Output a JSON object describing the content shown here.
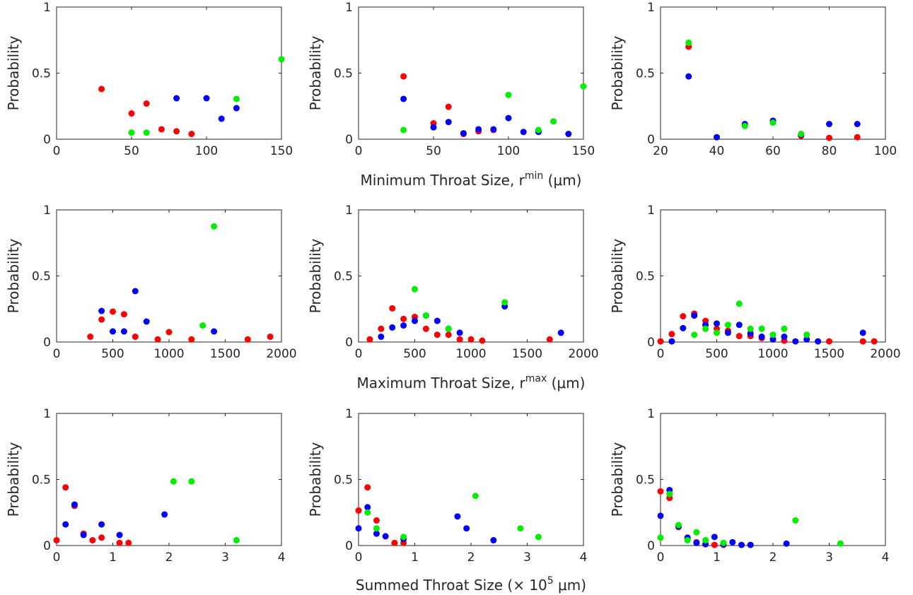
{
  "colors": {
    "red": "#ff0000",
    "blue": "#0000ff",
    "green": "#00ee00",
    "axis": "#262626"
  },
  "row_xlabels": [
    {
      "text": "Minimum Throat Size, r",
      "sup": "min",
      "unit": "(μm)"
    },
    {
      "text": "Maximum Throat Size, r",
      "sup": "max",
      "unit": "(μm)"
    },
    {
      "text": "Summed Throat Size (× 10",
      "sup": "5",
      "unit": "μm)"
    }
  ],
  "chart_data": [
    {
      "type": "scatter",
      "row": 0,
      "col": 0,
      "ylabel": "Probability",
      "xlim": [
        0,
        150
      ],
      "ylim": [
        0,
        1
      ],
      "xticks": [
        "0",
        "50",
        "100",
        "150"
      ],
      "yticks": [
        "0",
        "0.5",
        "1"
      ],
      "series": [
        {
          "color": "red",
          "points": [
            [
              30,
              0.38
            ],
            [
              50,
              0.195
            ],
            [
              60,
              0.27
            ],
            [
              70,
              0.075
            ],
            [
              80,
              0.06
            ],
            [
              90,
              0.04
            ]
          ]
        },
        {
          "color": "blue",
          "points": [
            [
              80,
              0.31
            ],
            [
              100,
              0.31
            ],
            [
              110,
              0.155
            ],
            [
              120,
              0.235
            ]
          ]
        },
        {
          "color": "green",
          "points": [
            [
              50,
              0.05
            ],
            [
              60,
              0.05
            ],
            [
              120,
              0.305
            ],
            [
              150,
              0.605
            ]
          ]
        }
      ]
    },
    {
      "type": "scatter",
      "row": 0,
      "col": 1,
      "ylabel": "Probability",
      "xlim": [
        0,
        150
      ],
      "ylim": [
        0,
        1
      ],
      "xticks": [
        "0",
        "50",
        "100",
        "150"
      ],
      "yticks": [
        "0",
        "0.5",
        "1"
      ],
      "series": [
        {
          "color": "red",
          "points": [
            [
              30,
              0.475
            ],
            [
              50,
              0.12
            ],
            [
              60,
              0.245
            ],
            [
              70,
              0.04
            ],
            [
              80,
              0.06
            ],
            [
              90,
              0.07
            ],
            [
              120,
              0.06
            ]
          ]
        },
        {
          "color": "blue",
          "points": [
            [
              30,
              0.305
            ],
            [
              50,
              0.09
            ],
            [
              60,
              0.13
            ],
            [
              70,
              0.045
            ],
            [
              80,
              0.075
            ],
            [
              90,
              0.075
            ],
            [
              100,
              0.16
            ],
            [
              110,
              0.055
            ],
            [
              120,
              0.055
            ],
            [
              140,
              0.04
            ]
          ]
        },
        {
          "color": "green",
          "points": [
            [
              30,
              0.07
            ],
            [
              100,
              0.335
            ],
            [
              120,
              0.07
            ],
            [
              130,
              0.135
            ],
            [
              150,
              0.4
            ]
          ]
        }
      ]
    },
    {
      "type": "scatter",
      "row": 0,
      "col": 2,
      "ylabel": "Probability",
      "xlim": [
        20,
        100
      ],
      "ylim": [
        0,
        1
      ],
      "xticks": [
        "20",
        "40",
        "60",
        "80",
        "100"
      ],
      "yticks": [
        "0",
        "0.5",
        "1"
      ],
      "series": [
        {
          "color": "red",
          "points": [
            [
              30,
              0.7
            ],
            [
              50,
              0.11
            ],
            [
              60,
              0.13
            ],
            [
              70,
              0.025
            ],
            [
              80,
              0.01
            ],
            [
              90,
              0.015
            ]
          ]
        },
        {
          "color": "blue",
          "points": [
            [
              30,
              0.475
            ],
            [
              40,
              0.015
            ],
            [
              50,
              0.115
            ],
            [
              60,
              0.14
            ],
            [
              70,
              0.035
            ],
            [
              80,
              0.115
            ],
            [
              90,
              0.115
            ]
          ]
        },
        {
          "color": "green",
          "points": [
            [
              30,
              0.73
            ],
            [
              50,
              0.1
            ],
            [
              60,
              0.125
            ],
            [
              70,
              0.04
            ]
          ]
        }
      ]
    },
    {
      "type": "scatter",
      "row": 1,
      "col": 0,
      "ylabel": "Probability",
      "xlim": [
        0,
        2000
      ],
      "ylim": [
        0,
        1
      ],
      "xticks": [
        "0",
        "500",
        "1000",
        "1500",
        "2000"
      ],
      "yticks": [
        "0",
        "0.5",
        "1"
      ],
      "series": [
        {
          "color": "red",
          "points": [
            [
              300,
              0.04
            ],
            [
              400,
              0.17
            ],
            [
              500,
              0.23
            ],
            [
              600,
              0.21
            ],
            [
              700,
              0.04
            ],
            [
              900,
              0.02
            ],
            [
              1000,
              0.075
            ],
            [
              1200,
              0.02
            ],
            [
              1700,
              0.02
            ],
            [
              1900,
              0.04
            ]
          ]
        },
        {
          "color": "blue",
          "points": [
            [
              400,
              0.235
            ],
            [
              500,
              0.08
            ],
            [
              600,
              0.08
            ],
            [
              700,
              0.385
            ],
            [
              800,
              0.155
            ],
            [
              1400,
              0.08
            ]
          ]
        },
        {
          "color": "green",
          "points": [
            [
              1300,
              0.125
            ],
            [
              1400,
              0.875
            ]
          ]
        }
      ]
    },
    {
      "type": "scatter",
      "row": 1,
      "col": 1,
      "ylabel": "Probability",
      "xlim": [
        0,
        2000
      ],
      "ylim": [
        0,
        1
      ],
      "xticks": [
        "0",
        "500",
        "1000",
        "1500",
        "2000"
      ],
      "yticks": [
        "0",
        "0.5",
        "1"
      ],
      "series": [
        {
          "color": "red",
          "points": [
            [
              100,
              0.02
            ],
            [
              200,
              0.1
            ],
            [
              300,
              0.255
            ],
            [
              400,
              0.175
            ],
            [
              500,
              0.19
            ],
            [
              600,
              0.1
            ],
            [
              700,
              0.055
            ],
            [
              800,
              0.055
            ],
            [
              900,
              0.02
            ],
            [
              1000,
              0.02
            ],
            [
              1100,
              0.01
            ],
            [
              1700,
              0.02
            ]
          ]
        },
        {
          "color": "blue",
          "points": [
            [
              200,
              0.04
            ],
            [
              300,
              0.11
            ],
            [
              400,
              0.125
            ],
            [
              500,
              0.16
            ],
            [
              600,
              0.2
            ],
            [
              700,
              0.16
            ],
            [
              800,
              0.1
            ],
            [
              900,
              0.07
            ],
            [
              1300,
              0.27
            ],
            [
              1800,
              0.07
            ]
          ]
        },
        {
          "color": "green",
          "points": [
            [
              500,
              0.4
            ],
            [
              600,
              0.2
            ],
            [
              800,
              0.1
            ],
            [
              1300,
              0.3
            ]
          ]
        }
      ]
    },
    {
      "type": "scatter",
      "row": 1,
      "col": 2,
      "ylabel": "Probability",
      "xlim": [
        0,
        2000
      ],
      "ylim": [
        0,
        1
      ],
      "xticks": [
        "0",
        "500",
        "1000",
        "1500",
        "2000"
      ],
      "yticks": [
        "0",
        "0.5",
        "1"
      ],
      "series": [
        {
          "color": "red",
          "points": [
            [
              0,
              0.005
            ],
            [
              100,
              0.06
            ],
            [
              200,
              0.195
            ],
            [
              300,
              0.215
            ],
            [
              400,
              0.16
            ],
            [
              500,
              0.1
            ],
            [
              600,
              0.085
            ],
            [
              700,
              0.045
            ],
            [
              800,
              0.045
            ],
            [
              900,
              0.03
            ],
            [
              1000,
              0.02
            ],
            [
              1100,
              0.01
            ],
            [
              1500,
              0.005
            ],
            [
              1800,
              0.005
            ],
            [
              1900,
              0.005
            ]
          ]
        },
        {
          "color": "blue",
          "points": [
            [
              100,
              0.005
            ],
            [
              200,
              0.105
            ],
            [
              300,
              0.2
            ],
            [
              400,
              0.13
            ],
            [
              500,
              0.14
            ],
            [
              600,
              0.07
            ],
            [
              700,
              0.13
            ],
            [
              800,
              0.065
            ],
            [
              900,
              0.04
            ],
            [
              1000,
              0.02
            ],
            [
              1100,
              0.04
            ],
            [
              1200,
              0.005
            ],
            [
              1300,
              0.02
            ],
            [
              1400,
              0.005
            ],
            [
              1800,
              0.07
            ]
          ]
        },
        {
          "color": "green",
          "points": [
            [
              300,
              0.055
            ],
            [
              400,
              0.1
            ],
            [
              500,
              0.07
            ],
            [
              600,
              0.13
            ],
            [
              700,
              0.29
            ],
            [
              800,
              0.1
            ],
            [
              900,
              0.1
            ],
            [
              1000,
              0.055
            ],
            [
              1100,
              0.1
            ],
            [
              1300,
              0.055
            ]
          ]
        }
      ]
    },
    {
      "type": "scatter",
      "row": 2,
      "col": 0,
      "ylabel": "Probability",
      "xlim": [
        0,
        4
      ],
      "ylim": [
        0,
        1
      ],
      "xticks": [
        "0",
        "1",
        "2",
        "3",
        "4"
      ],
      "yticks": [
        "0",
        "0.5",
        "1"
      ],
      "series": [
        {
          "color": "red",
          "points": [
            [
              0,
              0.04
            ],
            [
              0.16,
              0.44
            ],
            [
              0.32,
              0.3
            ],
            [
              0.48,
              0.09
            ],
            [
              0.64,
              0.04
            ],
            [
              0.8,
              0.06
            ],
            [
              1.12,
              0.02
            ],
            [
              1.28,
              0.02
            ]
          ]
        },
        {
          "color": "blue",
          "points": [
            [
              0.16,
              0.16
            ],
            [
              0.32,
              0.31
            ],
            [
              0.48,
              0.08
            ],
            [
              0.8,
              0.16
            ],
            [
              1.12,
              0.08
            ],
            [
              1.92,
              0.235
            ]
          ]
        },
        {
          "color": "green",
          "points": [
            [
              2.08,
              0.485
            ],
            [
              2.4,
              0.485
            ],
            [
              3.2,
              0.04
            ]
          ]
        }
      ]
    },
    {
      "type": "scatter",
      "row": 2,
      "col": 1,
      "ylabel": "Probability",
      "xlim": [
        0,
        4
      ],
      "ylim": [
        0,
        1
      ],
      "xticks": [
        "0",
        "1",
        "2",
        "3",
        "4"
      ],
      "yticks": [
        "0",
        "0.5",
        "1"
      ],
      "series": [
        {
          "color": "red",
          "points": [
            [
              0,
              0.265
            ],
            [
              0.16,
              0.44
            ],
            [
              0.32,
              0.19
            ],
            [
              0.64,
              0.02
            ],
            [
              0.8,
              0.02
            ]
          ]
        },
        {
          "color": "blue",
          "points": [
            [
              0,
              0.13
            ],
            [
              0.16,
              0.29
            ],
            [
              0.32,
              0.09
            ],
            [
              0.48,
              0.07
            ],
            [
              0.8,
              0.05
            ],
            [
              1.76,
              0.22
            ],
            [
              1.92,
              0.13
            ],
            [
              2.4,
              0.04
            ]
          ]
        },
        {
          "color": "green",
          "points": [
            [
              0.16,
              0.25
            ],
            [
              0.32,
              0.13
            ],
            [
              0.8,
              0.065
            ],
            [
              2.08,
              0.375
            ],
            [
              2.88,
              0.13
            ],
            [
              3.2,
              0.065
            ]
          ]
        }
      ]
    },
    {
      "type": "scatter",
      "row": 2,
      "col": 2,
      "ylabel": "Probability",
      "xlim": [
        0,
        4
      ],
      "ylim": [
        0,
        1
      ],
      "xticks": [
        "0",
        "1",
        "2",
        "3",
        "4"
      ],
      "yticks": [
        "0",
        "0.5",
        "1"
      ],
      "series": [
        {
          "color": "red",
          "points": [
            [
              0,
              0.41
            ],
            [
              0.16,
              0.36
            ],
            [
              0.32,
              0.14
            ],
            [
              0.48,
              0.045
            ],
            [
              0.64,
              0.025
            ],
            [
              0.8,
              0.01
            ],
            [
              0.96,
              0.005
            ],
            [
              1.12,
              0.005
            ]
          ]
        },
        {
          "color": "blue",
          "points": [
            [
              0,
              0.225
            ],
            [
              0.16,
              0.42
            ],
            [
              0.32,
              0.145
            ],
            [
              0.48,
              0.06
            ],
            [
              0.64,
              0.02
            ],
            [
              0.8,
              0.01
            ],
            [
              0.96,
              0.065
            ],
            [
              1.12,
              0.01
            ],
            [
              1.28,
              0.025
            ],
            [
              1.44,
              0.005
            ],
            [
              1.6,
              0.005
            ],
            [
              2.24,
              0.015
            ]
          ]
        },
        {
          "color": "green",
          "points": [
            [
              0,
              0.06
            ],
            [
              0.16,
              0.39
            ],
            [
              0.32,
              0.155
            ],
            [
              0.48,
              0.04
            ],
            [
              0.64,
              0.1
            ],
            [
              0.8,
              0.04
            ],
            [
              1.12,
              0.02
            ],
            [
              2.4,
              0.19
            ],
            [
              3.2,
              0.015
            ]
          ]
        }
      ]
    }
  ]
}
